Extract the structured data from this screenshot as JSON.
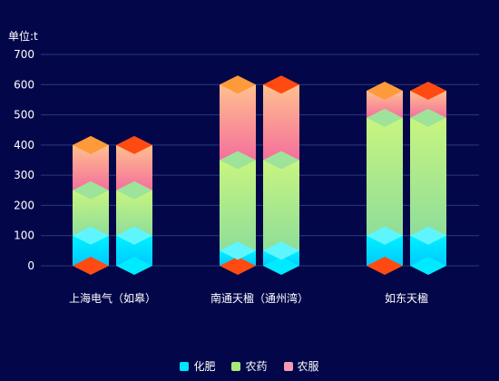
{
  "chart_data": {
    "type": "bar",
    "unit_label": "单位:t",
    "categories": [
      "上海电气（如皋）",
      "南通天楹（通州湾）",
      "如东天楹"
    ],
    "y_ticks": [
      "0",
      "100",
      "200",
      "300",
      "400",
      "500",
      "600",
      "700"
    ],
    "ylim": [
      0,
      700
    ],
    "stacking": "stacked",
    "series": [
      {
        "name": "化肥",
        "values": [
          [
            100,
            100
          ],
          [
            50,
            50
          ],
          [
            100,
            100
          ]
        ],
        "color": "#00e5ff"
      },
      {
        "name": "农药",
        "values": [
          [
            150,
            150
          ],
          [
            300,
            300
          ],
          [
            390,
            390
          ]
        ],
        "color": "#a6ea7a"
      },
      {
        "name": "农服",
        "values": [
          [
            150,
            150
          ],
          [
            250,
            250
          ],
          [
            90,
            90
          ]
        ],
        "color": "#f49bb0"
      }
    ],
    "grid": true,
    "legend_position": "bottom-center"
  }
}
